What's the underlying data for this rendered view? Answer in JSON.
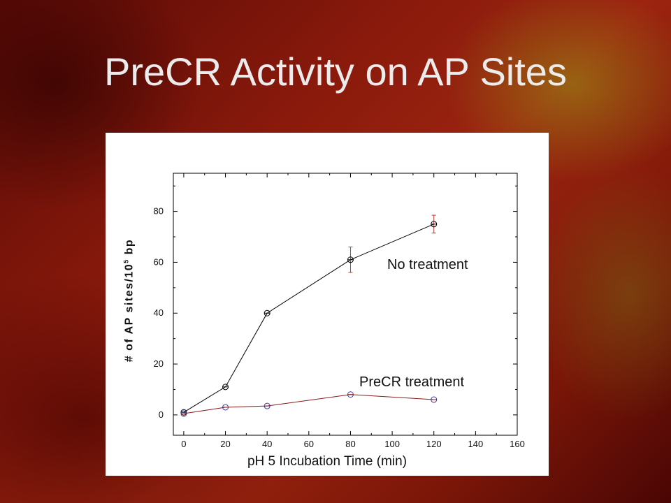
{
  "slide": {
    "title": "PreCR Activity on AP Sites"
  },
  "chart_data": {
    "type": "line",
    "xlabel": "pH 5 Incubation Time (min)",
    "ylabel_main": "# of AP sites/10",
    "ylabel_exp": "5",
    "ylabel_unit": " bp",
    "xlim": [
      -5,
      160
    ],
    "ylim": [
      -8,
      95
    ],
    "xticks": [
      0,
      20,
      40,
      60,
      80,
      100,
      120,
      140,
      160
    ],
    "yticks": [
      0,
      20,
      40,
      60,
      80
    ],
    "series": [
      {
        "name": "No treatment",
        "color": "#000000",
        "marker_color": "#000000",
        "error_color": "#c0392b",
        "x": [
          0,
          20,
          40,
          80,
          120
        ],
        "y": [
          1,
          11,
          40,
          61,
          75
        ],
        "err": [
          0,
          0,
          0,
          5,
          3.5
        ]
      },
      {
        "name": "PreCR treatment",
        "color": "#8b1a1a",
        "marker_color": "#3a3aa0",
        "error_color": "#c0392b",
        "x": [
          0,
          20,
          40,
          80,
          120
        ],
        "y": [
          0.5,
          3,
          3.5,
          8,
          6
        ],
        "err": [
          0,
          0,
          0,
          0,
          0
        ]
      }
    ]
  }
}
